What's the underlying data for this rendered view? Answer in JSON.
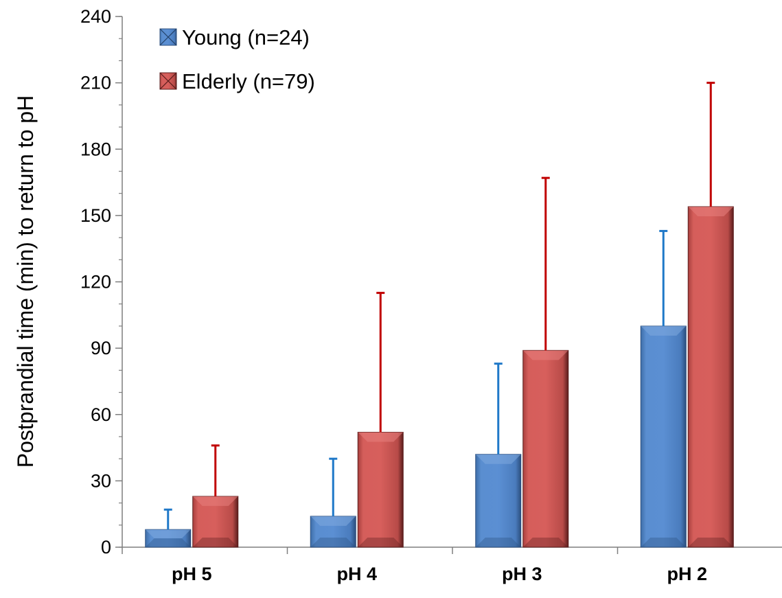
{
  "chart_data": {
    "type": "bar",
    "title": "",
    "xlabel": "",
    "ylabel": "Postprandial time (min) to return to pH",
    "categories": [
      "pH 5",
      "pH 4",
      "pH 3",
      "pH 2"
    ],
    "ylim": [
      0,
      240
    ],
    "yticks": [
      0,
      30,
      60,
      90,
      120,
      150,
      180,
      210,
      240
    ],
    "y_minor_step": 10,
    "grid": false,
    "legend_position": "top-left",
    "series": [
      {
        "name": "Young (n=24)",
        "color": "#4F81BD",
        "error_color": "#1F78C8",
        "values": [
          8,
          14,
          42,
          100
        ],
        "error_upper": [
          17,
          40,
          83,
          143
        ]
      },
      {
        "name": "Elderly (n=79)",
        "color": "#C0504D",
        "error_color": "#C00000",
        "values": [
          23,
          52,
          89,
          154
        ],
        "error_upper": [
          46,
          115,
          167,
          210
        ]
      }
    ]
  }
}
